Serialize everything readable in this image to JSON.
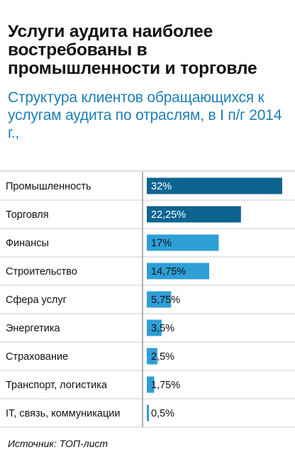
{
  "headline": "Услуги аудита наиболее востребованы в промышленности и торговле",
  "subtitle": "Структура клиентов обращающихся к услугам аудита по отраслям, в I п/г 2014 г.,",
  "source": "Источник: ТОП-лист",
  "colors": {
    "dark": "#0d6490",
    "light": "#2e9fd6",
    "divider": "#9a9a9a",
    "separator": "#bdbdbd"
  },
  "chart_data": {
    "type": "bar",
    "orientation": "horizontal",
    "categories": [
      "Промышленность",
      "Торговля",
      "Финансы",
      "Строительство",
      "Сфера услуг",
      "Энергетика",
      "Страхование",
      "Транспорт, логистика",
      "IT, связь, коммуникации"
    ],
    "values": [
      32,
      22.25,
      17,
      14.75,
      5.75,
      3.5,
      2.5,
      1.75,
      0.5
    ],
    "labels": [
      "32%",
      "22,25%",
      "17%",
      "14,75%",
      "5,75%",
      "3,5%",
      "2,5%",
      "1,75%",
      "0,5%"
    ],
    "value_unit": "%",
    "highlighted": [
      true,
      true,
      false,
      false,
      false,
      false,
      false,
      false,
      false
    ],
    "xlim": [
      0,
      32
    ]
  }
}
